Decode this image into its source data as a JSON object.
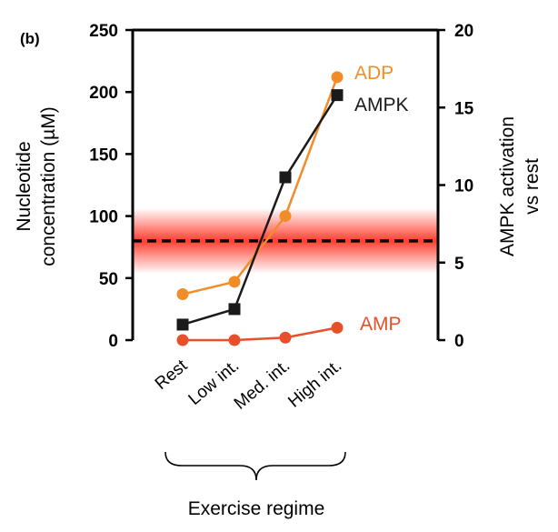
{
  "panel_label": "(b)",
  "colors": {
    "adp": "#f28c28",
    "ampk": "#1a1a1a",
    "amp": "#e8502a",
    "band": "#ff2a1a",
    "axis": "#000000"
  },
  "chart_data": {
    "type": "line",
    "categories": [
      "Rest",
      "Low int.",
      "Med. int.",
      "High int."
    ],
    "xlabel": "Exercise regime",
    "ylabel_left": [
      "Nucleotide",
      "concentration (µM)"
    ],
    "ylabel_right": [
      "AMPK activation",
      "vs rest"
    ],
    "ylim_left": [
      0,
      250
    ],
    "yticks_left": [
      0,
      50,
      100,
      150,
      200,
      250
    ],
    "ylim_right": [
      0,
      20
    ],
    "yticks_right": [
      0,
      5,
      10,
      15,
      20
    ],
    "threshold": {
      "value": 80,
      "axis": "left",
      "style": "dashed"
    },
    "series": [
      {
        "name": "ADP",
        "axis": "left",
        "marker": "circle",
        "color": "#f28c28",
        "values": [
          37,
          47,
          100,
          212
        ]
      },
      {
        "name": "AMPK",
        "axis": "right",
        "marker": "square",
        "color": "#1a1a1a",
        "values": [
          1,
          2,
          10.5,
          15.8
        ]
      },
      {
        "name": "AMP",
        "axis": "left",
        "marker": "circle",
        "color": "#e8502a",
        "values": [
          0,
          0,
          2,
          10
        ]
      }
    ]
  }
}
